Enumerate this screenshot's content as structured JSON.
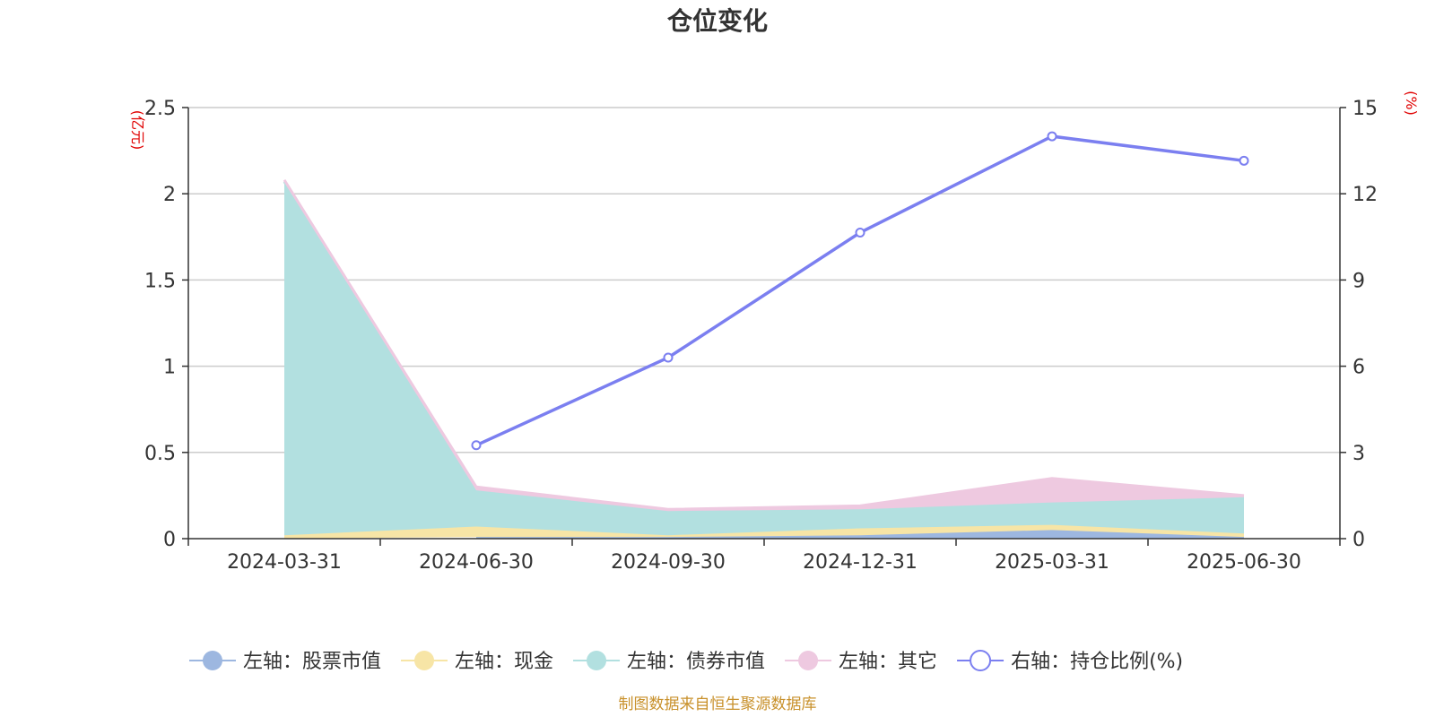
{
  "chart_data": {
    "type": "area",
    "title": "仓位变化",
    "categories": [
      "2024-03-31",
      "2024-06-30",
      "2024-09-30",
      "2024-12-31",
      "2025-03-31",
      "2025-06-30"
    ],
    "left_axis": {
      "unit": "(亿元)",
      "ylim": [
        0,
        2.5
      ],
      "ticks": [
        "0",
        "0.5",
        "1",
        "1.5",
        "2",
        "2.5"
      ],
      "tick_values": [
        0,
        0.5,
        1,
        1.5,
        2,
        2.5
      ]
    },
    "right_axis": {
      "unit": "(%)",
      "ylim": [
        0,
        15
      ],
      "ticks": [
        "0",
        "3",
        "6",
        "9",
        "12",
        "15"
      ],
      "tick_values": [
        0,
        3,
        6,
        9,
        12,
        15
      ]
    },
    "stacked_series": [
      {
        "name": "左轴：股票市值",
        "color": "#9db7e0",
        "values": [
          null,
          0.01,
          0.01,
          0.02,
          0.05,
          0.01
        ]
      },
      {
        "name": "左轴：现金",
        "color": "#f7e5a6",
        "values": [
          0.02,
          0.06,
          0.01,
          0.04,
          0.03,
          0.02
        ]
      },
      {
        "name": "左轴：债券市值",
        "color": "#b2e0e0",
        "values": [
          2.05,
          0.21,
          0.14,
          0.11,
          0.13,
          0.21
        ]
      },
      {
        "name": "左轴：其它",
        "color": "#eec9e0",
        "values": [
          0.01,
          0.02,
          0.01,
          0.02,
          0.14,
          0.01
        ]
      }
    ],
    "line_series": {
      "name": "右轴：持仓比例(%)",
      "color": "#7b7ff0",
      "values": [
        null,
        3.25,
        6.3,
        10.65,
        14.0,
        13.15
      ]
    },
    "grid": true,
    "legend_position": "bottom"
  },
  "footer": {
    "source": "制图数据来自恒生聚源数据库"
  }
}
